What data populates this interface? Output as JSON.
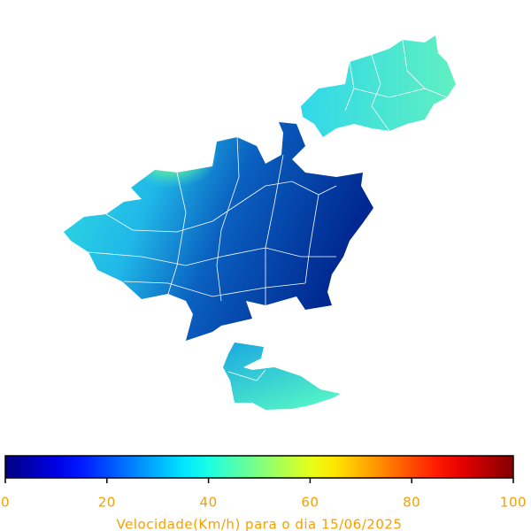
{
  "colorbar": {
    "label": "Velocidade(Km/h) para o dia 15/06/2025",
    "lim": [
      0,
      100
    ],
    "ticks": [
      0,
      20,
      40,
      60,
      80,
      100
    ],
    "colormap": "jet",
    "text_color": "#f5a000"
  }
}
